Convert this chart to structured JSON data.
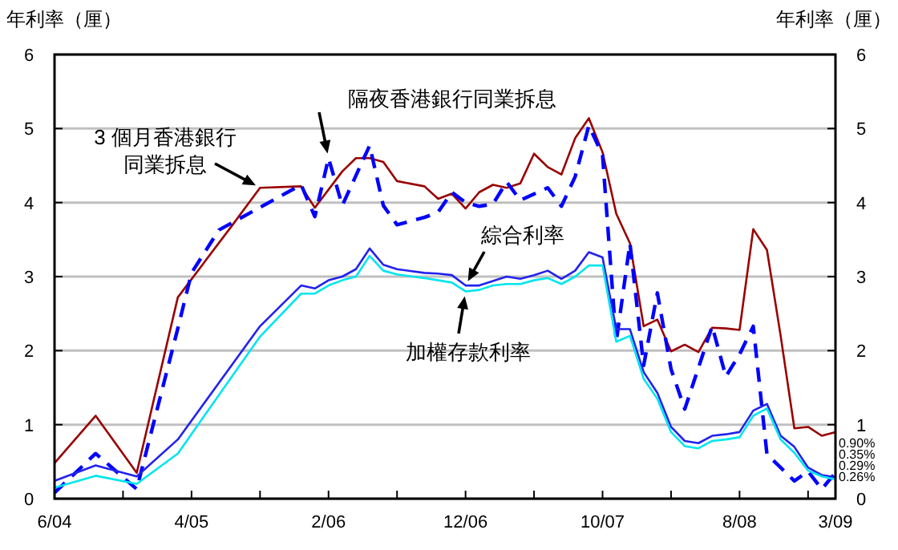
{
  "chart_data": {
    "type": "line",
    "ylabel": "年利率（厘）",
    "y2label": "年利率（厘）",
    "xlim": [
      "2004-06",
      "2009-03"
    ],
    "xticks": [
      {
        "value": "2004-06",
        "label": "6/04"
      },
      {
        "value": "2004-11",
        "label": null
      },
      {
        "value": "2005-04",
        "label": "4/05"
      },
      {
        "value": "2005-09",
        "label": null
      },
      {
        "value": "2006-02",
        "label": "2/06"
      },
      {
        "value": "2006-07",
        "label": null
      },
      {
        "value": "2006-12",
        "label": "12/06"
      },
      {
        "value": "2007-05",
        "label": null
      },
      {
        "value": "2007-10",
        "label": "10/07"
      },
      {
        "value": "2008-03",
        "label": null
      },
      {
        "value": "2008-08",
        "label": "8/08"
      },
      {
        "value": "2009-01",
        "label": null
      },
      {
        "value": "2009-03",
        "label": "3/09"
      }
    ],
    "ylim": [
      0,
      6
    ],
    "yticks": [
      0,
      1,
      2,
      3,
      4,
      5,
      6
    ],
    "y2lim": [
      0,
      6
    ],
    "y2ticks": [
      0,
      1,
      2,
      3,
      4,
      5,
      6
    ],
    "grid": "y",
    "legend": false,
    "series": [
      {
        "name": "3 個月香港銀行同業拆息",
        "color": "#990000",
        "line_style": "solid",
        "x": [
          "2004-06",
          "2004-09",
          "2004-12",
          "2005-03",
          "2005-07",
          "2005-09",
          "2005-12",
          "2006-01",
          "2006-03",
          "2006-04",
          "2006-05",
          "2006-06",
          "2006-07",
          "2006-09",
          "2006-10",
          "2006-11",
          "2006-12",
          "2007-01",
          "2007-02",
          "2007-03",
          "2007-04",
          "2007-05",
          "2007-06",
          "2007-07",
          "2007-08",
          "2007-09",
          "2007-10",
          "2007-11",
          "2007-12",
          "2008-01",
          "2008-02",
          "2008-03",
          "2008-04",
          "2008-05",
          "2008-06",
          "2008-07",
          "2008-08",
          "2008-09",
          "2008-10",
          "2008-11",
          "2008-12",
          "2009-01",
          "2009-02",
          "2009-03"
        ],
        "values": [
          0.48,
          1.12,
          0.35,
          2.72,
          3.7,
          4.2,
          4.22,
          3.93,
          4.42,
          4.6,
          4.6,
          4.55,
          4.29,
          4.22,
          4.05,
          4.12,
          3.92,
          4.14,
          4.24,
          4.2,
          4.26,
          4.66,
          4.48,
          4.38,
          4.87,
          5.14,
          4.68,
          3.85,
          3.45,
          2.33,
          2.42,
          1.99,
          2.08,
          1.98,
          2.31,
          2.3,
          2.28,
          3.64,
          3.36,
          2.2,
          0.95,
          0.97,
          0.85,
          0.9
        ]
      },
      {
        "name": "隔夜香港銀行同業拆息",
        "color": "#0000ff",
        "line_style": "dashed",
        "x": [
          "2004-06",
          "2004-09",
          "2004-12",
          "2005-03",
          "2005-04",
          "2005-06",
          "2005-12",
          "2006-01",
          "2006-02",
          "2006-03",
          "2006-05",
          "2006-06",
          "2006-07",
          "2006-09",
          "2006-10",
          "2006-11",
          "2006-12",
          "2007-01",
          "2007-02",
          "2007-03",
          "2007-04",
          "2007-06",
          "2007-07",
          "2007-08",
          "2007-09",
          "2007-10",
          "2007-11",
          "2007-12",
          "2008-01",
          "2008-02",
          "2008-03",
          "2008-04",
          "2008-06",
          "2008-07",
          "2008-08",
          "2008-09",
          "2008-10",
          "2008-12",
          "2009-01",
          "2009-02",
          "2009-03"
        ],
        "values": [
          0.08,
          0.61,
          0.13,
          2.3,
          3.05,
          3.63,
          4.24,
          3.81,
          4.6,
          3.96,
          4.77,
          3.96,
          3.7,
          3.8,
          3.87,
          4.14,
          4.0,
          3.95,
          3.98,
          4.28,
          4.03,
          4.2,
          3.95,
          4.35,
          5.04,
          4.64,
          2.12,
          3.45,
          1.8,
          2.78,
          1.75,
          1.21,
          2.33,
          1.65,
          1.95,
          2.33,
          0.6,
          0.24,
          0.37,
          0.13,
          0.35
        ]
      },
      {
        "name": "綜合利率",
        "color": "#2222ee",
        "line_style": "solid",
        "x": [
          "2004-06",
          "2004-09",
          "2004-12",
          "2005-03",
          "2005-09",
          "2005-12",
          "2006-01",
          "2006-02",
          "2006-03",
          "2006-04",
          "2006-05",
          "2006-06",
          "2006-07",
          "2006-09",
          "2006-10",
          "2006-11",
          "2006-12",
          "2007-01",
          "2007-02",
          "2007-03",
          "2007-04",
          "2007-05",
          "2007-06",
          "2007-07",
          "2007-08",
          "2007-09",
          "2007-10",
          "2007-11",
          "2007-12",
          "2008-01",
          "2008-02",
          "2008-03",
          "2008-04",
          "2008-05",
          "2008-06",
          "2008-07",
          "2008-08",
          "2008-09",
          "2008-10",
          "2008-11",
          "2008-12",
          "2009-01",
          "2009-02",
          "2009-03"
        ],
        "values": [
          0.24,
          0.45,
          0.3,
          0.8,
          2.33,
          2.88,
          2.84,
          2.95,
          3.0,
          3.1,
          3.38,
          3.16,
          3.1,
          3.05,
          3.04,
          3.02,
          2.88,
          2.88,
          2.94,
          3.0,
          2.97,
          3.02,
          3.08,
          2.97,
          3.08,
          3.33,
          3.26,
          2.29,
          2.29,
          1.71,
          1.43,
          0.97,
          0.78,
          0.75,
          0.85,
          0.87,
          0.9,
          1.19,
          1.28,
          0.85,
          0.7,
          0.42,
          0.32,
          0.29
        ]
      },
      {
        "name": "加權存款利率",
        "color": "#00e5ee",
        "line_style": "solid",
        "x": [
          "2004-06",
          "2004-09",
          "2004-12",
          "2005-03",
          "2005-09",
          "2005-12",
          "2006-01",
          "2006-02",
          "2006-03",
          "2006-04",
          "2006-05",
          "2006-06",
          "2006-07",
          "2006-09",
          "2006-10",
          "2006-11",
          "2006-12",
          "2007-01",
          "2007-02",
          "2007-03",
          "2007-04",
          "2007-05",
          "2007-06",
          "2007-07",
          "2007-08",
          "2007-09",
          "2007-10",
          "2007-11",
          "2007-12",
          "2008-01",
          "2008-02",
          "2008-03",
          "2008-04",
          "2008-05",
          "2008-06",
          "2008-07",
          "2008-08",
          "2008-09",
          "2008-10",
          "2008-11",
          "2008-12",
          "2009-01",
          "2009-02",
          "2009-03"
        ],
        "values": [
          0.15,
          0.31,
          0.2,
          0.61,
          2.19,
          2.77,
          2.77,
          2.88,
          2.95,
          3.0,
          3.28,
          3.08,
          3.03,
          2.98,
          2.95,
          2.92,
          2.8,
          2.82,
          2.88,
          2.9,
          2.9,
          2.95,
          2.98,
          2.9,
          3.0,
          3.15,
          3.15,
          2.12,
          2.2,
          1.62,
          1.35,
          0.9,
          0.71,
          0.68,
          0.78,
          0.8,
          0.83,
          1.12,
          1.22,
          0.8,
          0.62,
          0.38,
          0.3,
          0.26
        ]
      }
    ],
    "annotations": [
      {
        "text": "0.90%",
        "x": "2009-03",
        "y": 0.9
      },
      {
        "text": "0.35%",
        "x": "2009-03",
        "y": 0.35
      },
      {
        "text": "0.29%",
        "x": "2009-03",
        "y": 0.29
      },
      {
        "text": "0.26%",
        "x": "2009-03",
        "y": 0.26
      }
    ]
  }
}
